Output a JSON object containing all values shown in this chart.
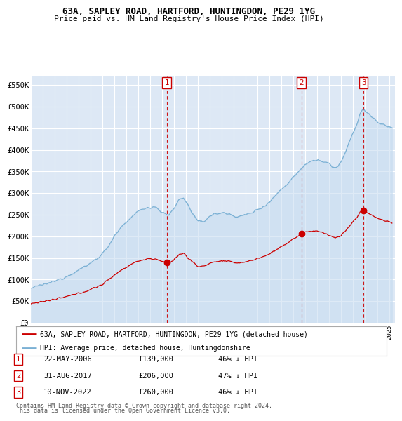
{
  "title": "63A, SAPLEY ROAD, HARTFORD, HUNTINGDON, PE29 1YG",
  "subtitle": "Price paid vs. HM Land Registry's House Price Index (HPI)",
  "ylabel_ticks": [
    "£0",
    "£50K",
    "£100K",
    "£150K",
    "£200K",
    "£250K",
    "£300K",
    "£350K",
    "£400K",
    "£450K",
    "£500K",
    "£550K"
  ],
  "ytick_values": [
    0,
    50000,
    100000,
    150000,
    200000,
    250000,
    300000,
    350000,
    400000,
    450000,
    500000,
    550000
  ],
  "ylim": [
    0,
    570000
  ],
  "xlim": [
    1995.0,
    2025.5
  ],
  "background_color": "#dde8f5",
  "plot_bg": "#dde8f5",
  "grid_color": "#ffffff",
  "hpi_color": "#7ab0d4",
  "hpi_fill_color": "#c8ddf0",
  "price_color": "#cc0000",
  "legend_border_color": "#aaaaaa",
  "dashed_line_color": "#cc0000",
  "transactions": [
    {
      "num": 1,
      "date": "22-MAY-2006",
      "price": 139000,
      "pct": "46%",
      "x_year": 2006.38
    },
    {
      "num": 2,
      "date": "31-AUG-2017",
      "price": 206000,
      "pct": "47%",
      "x_year": 2017.66
    },
    {
      "num": 3,
      "date": "10-NOV-2022",
      "price": 260000,
      "pct": "46%",
      "x_year": 2022.86
    }
  ],
  "footer_line1": "Contains HM Land Registry data © Crown copyright and database right 2024.",
  "footer_line2": "This data is licensed under the Open Government Licence v3.0.",
  "legend_label_red": "63A, SAPLEY ROAD, HARTFORD, HUNTINGDON, PE29 1YG (detached house)",
  "legend_label_blue": "HPI: Average price, detached house, Huntingdonshire",
  "table_rows": [
    [
      "1",
      "22-MAY-2006",
      "£139,000",
      "46% ↓ HPI"
    ],
    [
      "2",
      "31-AUG-2017",
      "£206,000",
      "47% ↓ HPI"
    ],
    [
      "3",
      "10-NOV-2022",
      "£260,000",
      "46% ↓ HPI"
    ]
  ]
}
